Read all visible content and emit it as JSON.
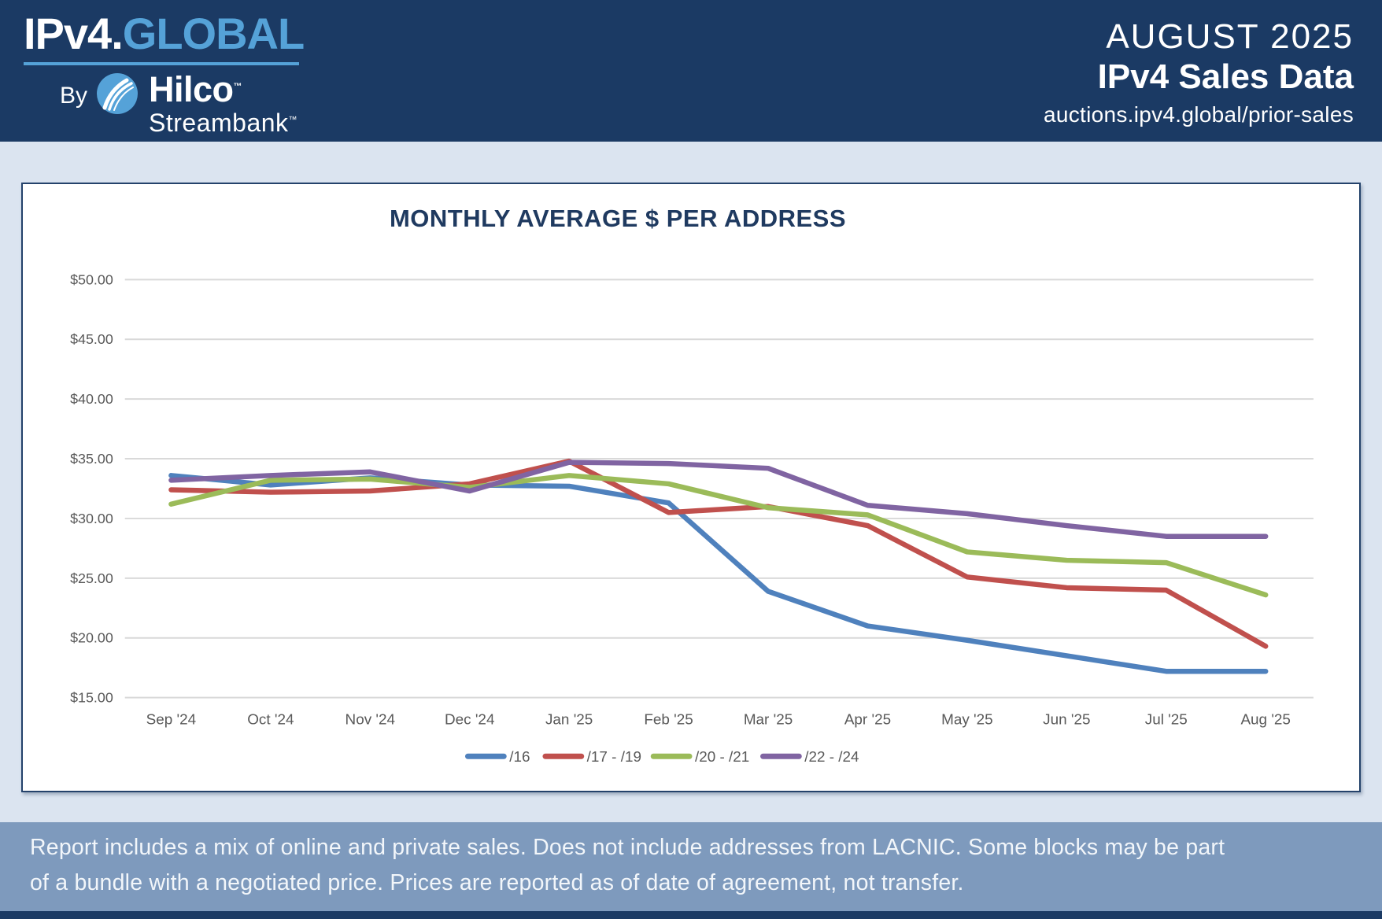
{
  "header": {
    "logo": {
      "brand_prefix": "IPv4.",
      "brand_suffix": "GLOBAL",
      "by_label": "By",
      "partner_name": "Hilco",
      "partner_name_tm": "™",
      "partner_sub": "Streambank",
      "partner_sub_tm": "™"
    },
    "report_month": "AUGUST 2025",
    "report_title": "IPv4 Sales Data",
    "report_url": "auctions.ipv4.global/prior-sales"
  },
  "chart_data": {
    "type": "line",
    "title": "MONTHLY AVERAGE $ PER ADDRESS",
    "categories": [
      "Sep '24",
      "Oct '24",
      "Nov '24",
      "Dec '24",
      "Jan '25",
      "Feb '25",
      "Mar '25",
      "Apr '25",
      "May '25",
      "Jun '25",
      "Jul '25",
      "Aug '25"
    ],
    "series": [
      {
        "name": "/16",
        "color": "#4F81BD",
        "values": [
          33.6,
          32.8,
          33.4,
          32.8,
          32.7,
          31.3,
          23.9,
          21.0,
          19.8,
          18.5,
          17.2,
          17.2
        ]
      },
      {
        "name": "/17 - /19",
        "color": "#C0504D",
        "values": [
          32.4,
          32.2,
          32.3,
          32.9,
          34.8,
          30.5,
          31.0,
          29.4,
          25.1,
          24.2,
          24.0,
          19.3
        ]
      },
      {
        "name": "/20 - /21",
        "color": "#9BBB59",
        "values": [
          31.2,
          33.2,
          33.3,
          32.6,
          33.6,
          32.9,
          30.9,
          30.3,
          27.2,
          26.5,
          26.3,
          23.6
        ]
      },
      {
        "name": "/22 - /24",
        "color": "#8064A2",
        "values": [
          33.2,
          33.6,
          33.9,
          32.3,
          34.7,
          34.6,
          34.2,
          31.1,
          30.4,
          29.4,
          28.5,
          28.5
        ]
      }
    ],
    "ylim": [
      15,
      50
    ],
    "ytick_step": 5,
    "ytick_prefix": "$",
    "grid": true,
    "legend_position": "bottom",
    "gridline_color": "#d9d9d9",
    "axis_text_color": "#595959"
  },
  "footer": {
    "line1": "Report includes a mix of online and private sales. Does not include addresses from LACNIC. Some blocks may be part",
    "line2": "of a bundle with a negotiated price. Prices are reported as of date of agreement, not transfer."
  }
}
